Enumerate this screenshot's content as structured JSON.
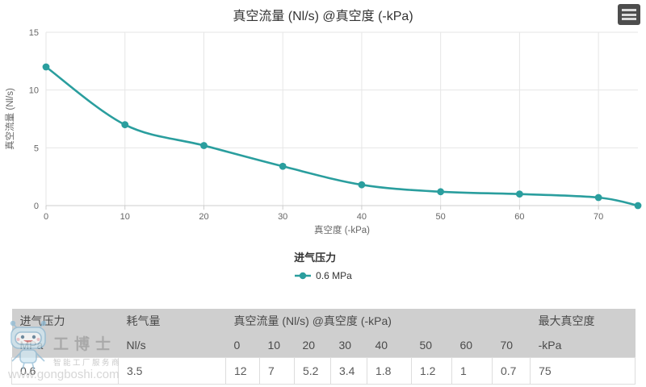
{
  "chart_data": {
    "type": "line",
    "title": "真空流量 (Nl/s) @真空度 (-kPa)",
    "xlabel": "真空度 (-kPa)",
    "ylabel": "真空流量 (Nl/s)",
    "xlim": [
      0,
      75
    ],
    "ylim": [
      0,
      15
    ],
    "x_ticks": [
      0,
      10,
      20,
      30,
      40,
      50,
      60,
      70
    ],
    "y_ticks": [
      0,
      5,
      10,
      15
    ],
    "grid": true,
    "legend_title": "进气压力",
    "legend_position": "bottom",
    "series": [
      {
        "name": "0.6 MPa",
        "color": "#2a9e9e",
        "marker": "circle",
        "x": [
          0,
          10,
          20,
          30,
          40,
          50,
          60,
          70,
          75
        ],
        "y": [
          12,
          7,
          5.2,
          3.4,
          1.8,
          1.2,
          1,
          0.7,
          0
        ]
      }
    ]
  },
  "menu": {
    "icon": "hamburger-icon"
  },
  "table": {
    "header_row1": [
      {
        "label": "进气压力",
        "colspan": 1
      },
      {
        "label": "耗气量",
        "colspan": 1
      },
      {
        "label": "真空流量 (Nl/s) @真空度 (-kPa)",
        "colspan": 8
      },
      {
        "label": "最大真空度",
        "colspan": 1
      }
    ],
    "header_row2": [
      "MPa",
      "Nl/s",
      "0",
      "10",
      "20",
      "30",
      "40",
      "50",
      "60",
      "70",
      "-kPa"
    ],
    "rows": [
      [
        "0.6",
        "3.5",
        "12",
        "7",
        "5.2",
        "3.4",
        "1.8",
        "1.2",
        "1",
        "0.7",
        "75"
      ]
    ]
  },
  "watermark": {
    "brand": "工博士",
    "tagline": "智能工厂服务商",
    "url": "www.gongboshi.com"
  },
  "colors": {
    "accent": "#2a9e9e",
    "grid": "#e6e6e6",
    "axis_line": "#cccccc",
    "axis_text": "#666666",
    "title_text": "#333333",
    "table_header_bg": "#cfcfcf",
    "table_border": "#dddddd"
  }
}
